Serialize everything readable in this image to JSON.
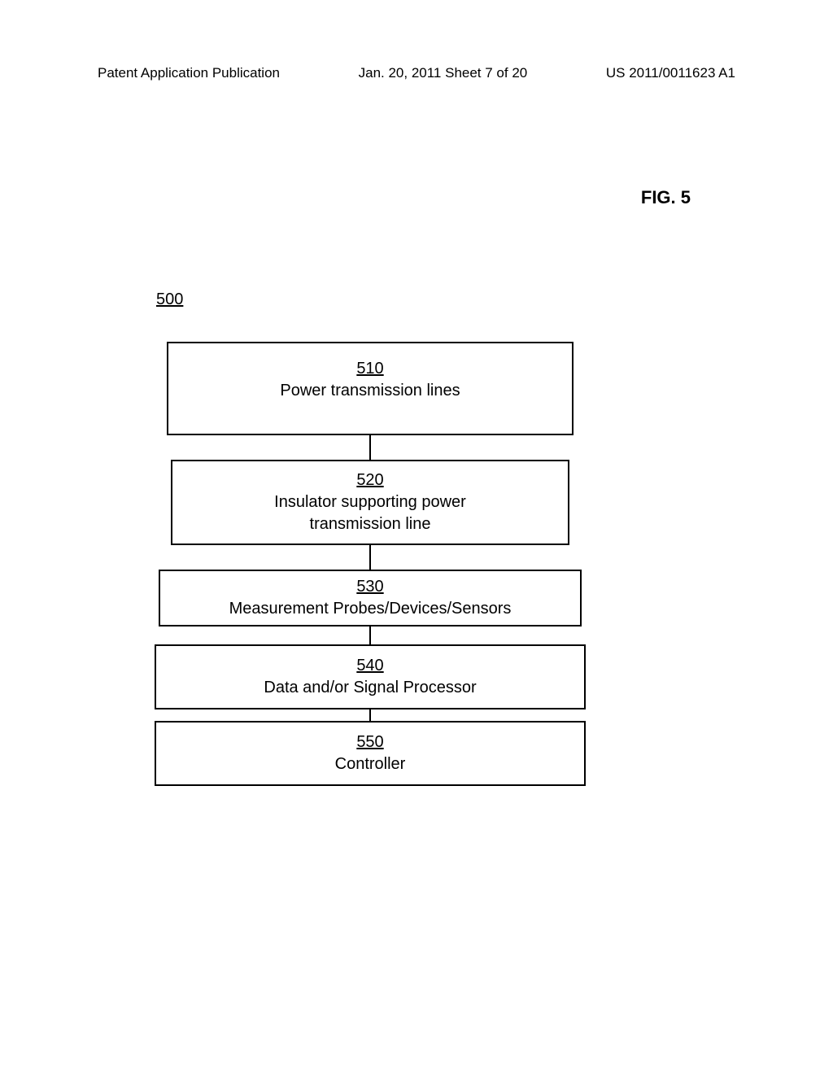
{
  "header": {
    "left": "Patent Application Publication",
    "mid": "Jan. 20, 2011  Sheet 7 of 20",
    "right": "US 2011/0011623 A1"
  },
  "figure": {
    "title": "FIG. 5",
    "system_ref": "500"
  },
  "blocks": {
    "b510": {
      "num": "510",
      "label": "Power transmission lines"
    },
    "b520": {
      "num": "520",
      "label_line1": "Insulator supporting power",
      "label_line2": "transmission line"
    },
    "b530": {
      "num": "530",
      "label": "Measurement Probes/Devices/Sensors"
    },
    "b540": {
      "num": "540",
      "label": "Data and/or Signal Processor"
    },
    "b550": {
      "num": "550",
      "label": "Controller"
    }
  }
}
